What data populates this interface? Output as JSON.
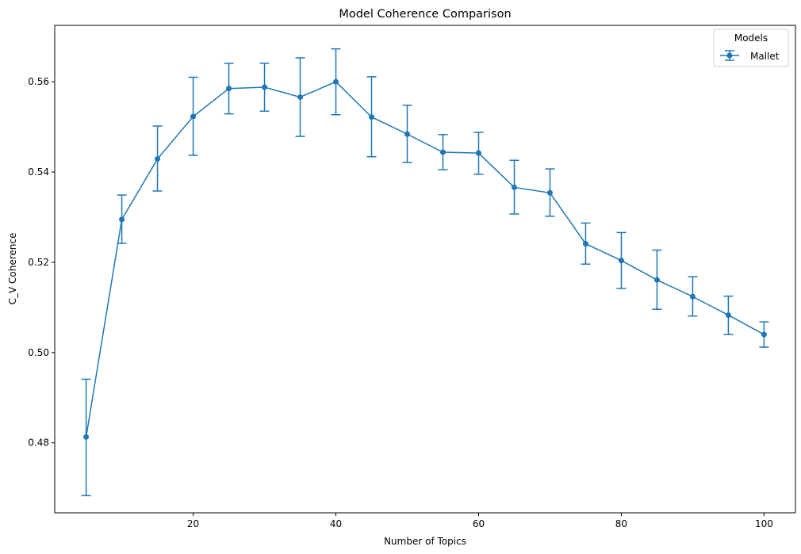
{
  "chart_data": {
    "type": "line",
    "title": "Model Coherence Comparison",
    "xlabel": "Number of Topics",
    "ylabel": "C_V Coherence",
    "xlim": [
      0.6,
      104.4
    ],
    "ylim": [
      0.4645,
      0.5725
    ],
    "xticks": [
      20,
      40,
      60,
      80,
      100
    ],
    "yticks": [
      0.48,
      0.5,
      0.52,
      0.54,
      0.56
    ],
    "ytick_labels": [
      "0.48",
      "0.50",
      "0.52",
      "0.54",
      "0.56"
    ],
    "grid": false,
    "legend": {
      "title": "Models",
      "placement": "top-right"
    },
    "series": [
      {
        "name": "Mallet",
        "color": "#1f77b4",
        "x": [
          5,
          10,
          15,
          20,
          25,
          30,
          35,
          40,
          45,
          50,
          55,
          60,
          65,
          70,
          75,
          80,
          85,
          90,
          95,
          100
        ],
        "y": [
          0.4813,
          0.5295,
          0.5429,
          0.5523,
          0.5585,
          0.5588,
          0.5566,
          0.56,
          0.5522,
          0.5484,
          0.5444,
          0.5442,
          0.5366,
          0.5354,
          0.5241,
          0.5204,
          0.5161,
          0.5124,
          0.5083,
          0.504
        ],
        "err_low": [
          0.4683,
          0.5242,
          0.5358,
          0.5437,
          0.5529,
          0.5535,
          0.5479,
          0.5527,
          0.5434,
          0.5421,
          0.5405,
          0.5395,
          0.5307,
          0.5302,
          0.5196,
          0.5142,
          0.5096,
          0.5081,
          0.504,
          0.5012
        ],
        "err_high": [
          0.4941,
          0.5349,
          0.5502,
          0.561,
          0.5641,
          0.5641,
          0.5653,
          0.5673,
          0.5611,
          0.5548,
          0.5483,
          0.5488,
          0.5426,
          0.5407,
          0.5287,
          0.5266,
          0.5227,
          0.5168,
          0.5125,
          0.5068
        ]
      }
    ]
  }
}
